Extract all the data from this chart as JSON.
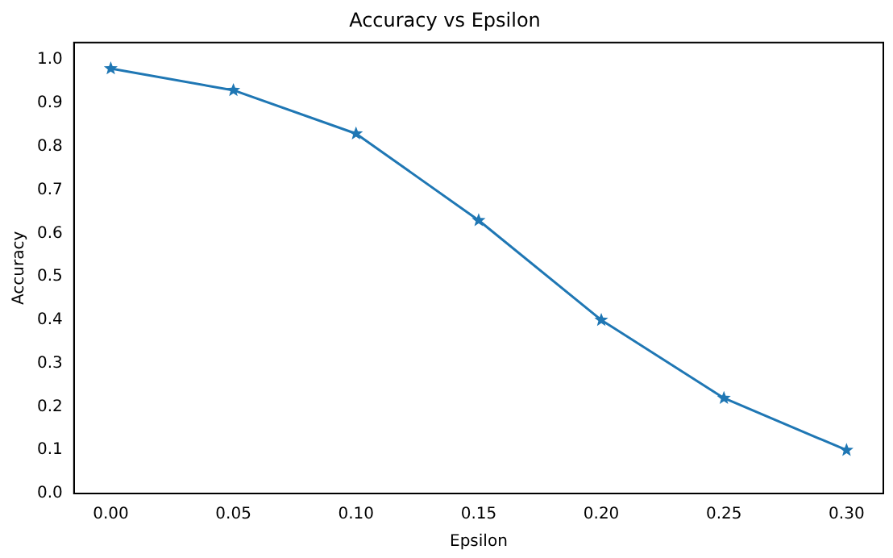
{
  "chart_data": {
    "type": "line",
    "title": "Accuracy vs Epsilon",
    "xlabel": "Epsilon",
    "ylabel": "Accuracy",
    "x": [
      0,
      0.05,
      0.1,
      0.15,
      0.2,
      0.25,
      0.3
    ],
    "series": [
      {
        "color": "#1f77b4",
        "values": [
          0.98,
          0.93,
          0.83,
          0.63,
          0.4,
          0.22,
          0.1
        ]
      }
    ],
    "xlim": [
      -0.015,
      0.315
    ],
    "ylim": [
      0,
      1.04
    ],
    "xticks": [
      {
        "value": 0,
        "label": "0.00"
      },
      {
        "value": 0.05,
        "label": "0.05"
      },
      {
        "value": 0.1,
        "label": "0.10"
      },
      {
        "value": 0.15,
        "label": "0.15"
      },
      {
        "value": 0.2,
        "label": "0.20"
      },
      {
        "value": 0.25,
        "label": "0.25"
      },
      {
        "value": 0.3,
        "label": "0.30"
      }
    ],
    "yticks": [
      {
        "value": 0,
        "label": "0.0"
      },
      {
        "value": 0.1,
        "label": "0.1"
      },
      {
        "value": 0.2,
        "label": "0.2"
      },
      {
        "value": 0.3,
        "label": "0.3"
      },
      {
        "value": 0.4,
        "label": "0.4"
      },
      {
        "value": 0.5,
        "label": "0.5"
      },
      {
        "value": 0.6,
        "label": "0.6"
      },
      {
        "value": 0.7,
        "label": "0.7"
      },
      {
        "value": 0.8,
        "label": "0.8"
      },
      {
        "value": 0.9,
        "label": "0.9"
      },
      {
        "value": 1,
        "label": "1.0"
      }
    ],
    "grid": false,
    "legend": false,
    "marker": "star",
    "line_style": "solid"
  }
}
